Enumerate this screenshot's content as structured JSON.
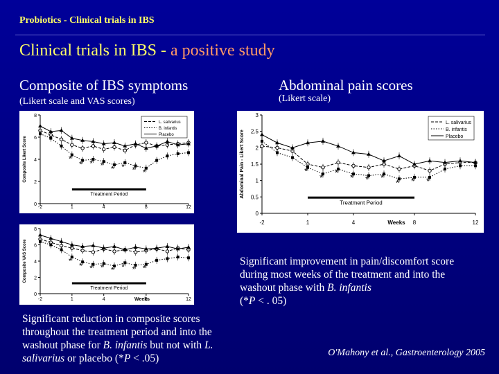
{
  "header": {
    "title": "Probiotics - Clinical trials in IBS"
  },
  "main_title": {
    "part1": "Clinical trials in IBS - ",
    "part2": "a positive study"
  },
  "left": {
    "heading": "Composite of IBS symptoms",
    "subheading": "(Likert scale and VAS scores)",
    "caption": {
      "t1": "Significant reduction in composite scores throughout the treatment period and into the washout phase for ",
      "t2": "B. infantis",
      "t3": " but not with ",
      "t4": "L. salivarius",
      "t5": " or placebo (*",
      "t6": "P",
      "t7": " < .05)"
    }
  },
  "right": {
    "heading": "Abdominal pain scores",
    "subheading": "(Likert scale)",
    "caption": {
      "t1": "Significant improvement in pain/discomfort score during most weeks of the treatment and into the washout phase with ",
      "t2": "B. infantis",
      "t3": " (*",
      "t4": "P",
      "t5": " < . 05)"
    }
  },
  "citation": {
    "text": "O'Mahony et al., Gastroenterology 2005"
  },
  "colors": {
    "background": "#000080",
    "title": "#ffff66",
    "title_accent": "#ff9966"
  },
  "chart_data": [
    {
      "type": "line",
      "ylabel": "Composite Likert Score",
      "yticks": [
        "0",
        "2",
        "4",
        "6",
        "8"
      ],
      "xticks": [
        "-2",
        "1",
        "4",
        "8",
        "12"
      ],
      "ylim": [
        0,
        8
      ],
      "xlim": [
        -2,
        12
      ],
      "annotation": "Treatment Period",
      "treatment_period": [
        1,
        8
      ],
      "legend": "top-right",
      "x": [
        -2,
        -1,
        0,
        1,
        2,
        3,
        4,
        5,
        6,
        7,
        8,
        9,
        10,
        11,
        12
      ],
      "series": [
        {
          "name": "L. salivarius",
          "marker": "circle",
          "values": [
            6.6,
            6.2,
            5.8,
            5.3,
            5.0,
            5.2,
            4.9,
            5.1,
            4.8,
            5.3,
            5.5,
            5.2,
            5.3,
            5.4,
            5.5
          ]
        },
        {
          "name": "B. infantis",
          "marker": "square",
          "values": [
            6.3,
            5.9,
            5.2,
            4.4,
            3.9,
            4.0,
            3.8,
            3.5,
            3.7,
            3.4,
            3.2,
            3.9,
            4.3,
            4.5,
            4.6
          ]
        },
        {
          "name": "Placebo",
          "marker": "triangle",
          "values": [
            7.0,
            6.5,
            6.6,
            5.9,
            5.7,
            5.6,
            5.4,
            5.5,
            5.2,
            5.4,
            5.0,
            5.2,
            5.6,
            5.3,
            5.4
          ]
        }
      ],
      "significant_weeks": [
        1,
        2,
        3,
        4,
        5,
        6,
        7,
        8
      ]
    },
    {
      "type": "line",
      "ylabel": "Composite VAS Score",
      "yticks": [
        "0",
        "2",
        "4",
        "6",
        "8"
      ],
      "xticks": [
        "-2",
        "1",
        "4",
        "8",
        "12"
      ],
      "xlabel": "Weeks",
      "ylim": [
        0,
        8
      ],
      "xlim": [
        -2,
        12
      ],
      "annotation": "Treatment Period",
      "treatment_period": [
        1,
        8
      ],
      "x": [
        -2,
        -1,
        0,
        1,
        2,
        3,
        4,
        5,
        6,
        7,
        8,
        9,
        10,
        11,
        12
      ],
      "series": [
        {
          "name": "L. salivarius",
          "marker": "circle",
          "values": [
            6.7,
            6.3,
            5.9,
            5.6,
            5.3,
            5.1,
            5.5,
            5.2,
            5.4,
            5.1,
            5.3,
            5.5,
            5.2,
            5.6,
            5.4
          ]
        },
        {
          "name": "B. infantis",
          "marker": "square",
          "values": [
            6.4,
            6.0,
            5.4,
            4.5,
            3.9,
            3.6,
            3.7,
            3.4,
            3.8,
            3.5,
            3.6,
            4.1,
            4.3,
            4.5,
            4.4
          ]
        },
        {
          "name": "Placebo",
          "marker": "triangle",
          "values": [
            7.2,
            6.8,
            6.4,
            6.0,
            5.8,
            5.9,
            5.6,
            5.8,
            5.4,
            5.7,
            5.5,
            5.6,
            5.8,
            5.5,
            5.7
          ]
        }
      ],
      "significant_weeks": [
        1,
        2,
        3,
        4,
        5,
        6,
        7,
        8
      ]
    },
    {
      "type": "line",
      "ylabel": "Abdominal Pain - Likert Score",
      "yticks": [
        "0",
        "0.5",
        "1",
        "1.5",
        "2",
        "2.5",
        "3"
      ],
      "xticks": [
        "-2",
        "1",
        "4",
        "8",
        "12"
      ],
      "xlabel": "Weeks",
      "ylim": [
        0,
        3
      ],
      "xlim": [
        -2,
        12
      ],
      "annotation": "Treatment Period",
      "treatment_period": [
        1,
        8
      ],
      "legend": "top-right",
      "x": [
        -2,
        -1,
        0,
        1,
        2,
        3,
        4,
        5,
        6,
        7,
        8,
        9,
        10,
        11,
        12
      ],
      "series": [
        {
          "name": "L. salivarius",
          "marker": "circle",
          "values": [
            2.05,
            2.0,
            1.9,
            1.5,
            1.4,
            1.55,
            1.45,
            1.4,
            1.5,
            1.35,
            1.45,
            1.3,
            1.5,
            1.55,
            1.55
          ]
        },
        {
          "name": "B. infantis",
          "marker": "square",
          "values": [
            2.2,
            1.85,
            1.7,
            1.4,
            1.2,
            1.35,
            1.2,
            1.15,
            1.2,
            1.05,
            1.1,
            1.1,
            1.35,
            1.45,
            1.45
          ]
        },
        {
          "name": "Placebo",
          "marker": "triangle",
          "values": [
            2.4,
            2.15,
            2.0,
            2.15,
            2.2,
            2.05,
            1.85,
            1.8,
            1.6,
            1.75,
            1.5,
            1.6,
            1.55,
            1.6,
            1.55
          ]
        }
      ],
      "significant_weeks": [
        1,
        2,
        3,
        4,
        5,
        6,
        7,
        8,
        9
      ]
    }
  ]
}
